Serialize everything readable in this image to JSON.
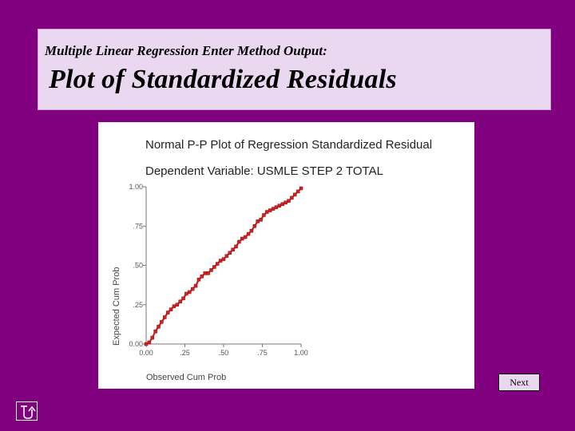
{
  "slide": {
    "subtitle": "Multiple Linear Regression Enter Method Output:",
    "title": "Plot of Standardized Residuals",
    "next_label": "Next",
    "return_icon": "return-arrow-icon"
  },
  "colors": {
    "background": "#800080",
    "title_box": "#ead8f0",
    "series": "#d42020"
  },
  "chart_data": {
    "type": "scatter",
    "title": "Normal P-P Plot of Regression Standardized Residual",
    "subtitle": "Dependent Variable: USMLE STEP 2 TOTAL",
    "xlabel": "Observed Cum Prob",
    "ylabel": "Expected Cum Prob",
    "xlim": [
      0,
      1
    ],
    "ylim": [
      0,
      1
    ],
    "xticks": [
      "0.00",
      ".25",
      ".50",
      ".75",
      "1.00"
    ],
    "yticks": [
      "0.00",
      ".25",
      ".50",
      ".75",
      "1.00"
    ],
    "grid": false,
    "series": [
      {
        "x": [
          0.0,
          0.02,
          0.04,
          0.06,
          0.08,
          0.1,
          0.12,
          0.14,
          0.16,
          0.18,
          0.2,
          0.22,
          0.24,
          0.26,
          0.28,
          0.3,
          0.32,
          0.34,
          0.36,
          0.38,
          0.4,
          0.42,
          0.44,
          0.46,
          0.48,
          0.5,
          0.52,
          0.54,
          0.56,
          0.58,
          0.6,
          0.62,
          0.64,
          0.66,
          0.68,
          0.7,
          0.72,
          0.74,
          0.76,
          0.78,
          0.8,
          0.82,
          0.84,
          0.86,
          0.88,
          0.9,
          0.92,
          0.94,
          0.96,
          0.98,
          1.0
        ],
        "y": [
          0.0,
          0.01,
          0.04,
          0.08,
          0.11,
          0.14,
          0.17,
          0.2,
          0.22,
          0.24,
          0.25,
          0.27,
          0.29,
          0.32,
          0.33,
          0.35,
          0.37,
          0.41,
          0.43,
          0.45,
          0.45,
          0.47,
          0.49,
          0.51,
          0.53,
          0.54,
          0.56,
          0.58,
          0.6,
          0.62,
          0.65,
          0.67,
          0.68,
          0.7,
          0.72,
          0.75,
          0.78,
          0.79,
          0.82,
          0.84,
          0.85,
          0.86,
          0.87,
          0.88,
          0.89,
          0.9,
          0.91,
          0.93,
          0.95,
          0.97,
          0.99
        ]
      }
    ]
  }
}
